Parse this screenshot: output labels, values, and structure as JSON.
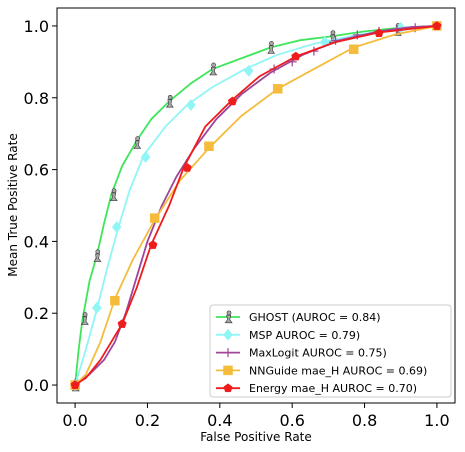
{
  "chart_data": {
    "type": "line",
    "title": "",
    "xlabel": "False Positive Rate",
    "ylabel": "Mean True Positive Rate",
    "xlim": [
      -0.05,
      1.05
    ],
    "ylim": [
      -0.05,
      1.05
    ],
    "xticks": [
      "0.0",
      "0.2",
      "0.4",
      "0.6",
      "0.8",
      "1.0"
    ],
    "yticks": [
      "0.0",
      "0.2",
      "0.4",
      "0.6",
      "0.8",
      "1.0"
    ],
    "grid": false,
    "legend_position": "bottom-right",
    "series": [
      {
        "name": "GHOST (AUROC = 0.84)",
        "color": "#3de65a",
        "marker": "figure",
        "marker_color": "#a8a8a8",
        "line": [
          [
            0,
            0
          ],
          [
            0.01,
            0.1
          ],
          [
            0.02,
            0.18
          ],
          [
            0.04,
            0.29
          ],
          [
            0.06,
            0.36
          ],
          [
            0.08,
            0.45
          ],
          [
            0.1,
            0.53
          ],
          [
            0.13,
            0.61
          ],
          [
            0.17,
            0.68
          ],
          [
            0.21,
            0.74
          ],
          [
            0.26,
            0.79
          ],
          [
            0.32,
            0.84
          ],
          [
            0.38,
            0.88
          ],
          [
            0.46,
            0.91
          ],
          [
            0.54,
            0.94
          ],
          [
            0.62,
            0.96
          ],
          [
            0.7,
            0.97
          ],
          [
            0.8,
            0.985
          ],
          [
            0.9,
            0.995
          ],
          [
            1.0,
            1.0
          ]
        ],
        "markers": [
          [
            0,
            0
          ],
          [
            0.025,
            0.185
          ],
          [
            0.06,
            0.36
          ],
          [
            0.105,
            0.53
          ],
          [
            0.17,
            0.675
          ],
          [
            0.26,
            0.79
          ],
          [
            0.38,
            0.88
          ],
          [
            0.54,
            0.94
          ],
          [
            0.71,
            0.97
          ],
          [
            0.89,
            0.99
          ]
        ]
      },
      {
        "name": "MSP  AUROC = 0.79)",
        "color": "#8ff5f5",
        "marker": "diamond",
        "marker_color": "#8ff5f5",
        "line": [
          [
            0,
            0
          ],
          [
            0.03,
            0.1
          ],
          [
            0.06,
            0.21
          ],
          [
            0.09,
            0.33
          ],
          [
            0.12,
            0.44
          ],
          [
            0.15,
            0.54
          ],
          [
            0.19,
            0.64
          ],
          [
            0.25,
            0.72
          ],
          [
            0.31,
            0.78
          ],
          [
            0.38,
            0.83
          ],
          [
            0.47,
            0.88
          ],
          [
            0.56,
            0.92
          ],
          [
            0.66,
            0.95
          ],
          [
            0.78,
            0.975
          ],
          [
            0.9,
            0.993
          ],
          [
            1.0,
            1.0
          ]
        ],
        "markers": [
          [
            0,
            0
          ],
          [
            0.06,
            0.215
          ],
          [
            0.115,
            0.44
          ],
          [
            0.195,
            0.635
          ],
          [
            0.32,
            0.78
          ],
          [
            0.48,
            0.875
          ],
          [
            0.69,
            0.955
          ],
          [
            0.9,
            0.995
          ]
        ]
      },
      {
        "name": "MaxLogit  AUROC = 0.75)",
        "color": "#a0449a",
        "marker": "tri",
        "marker_color": "#a0449a",
        "line": [
          [
            0,
            0
          ],
          [
            0.04,
            0.03
          ],
          [
            0.08,
            0.07
          ],
          [
            0.11,
            0.12
          ],
          [
            0.14,
            0.2
          ],
          [
            0.17,
            0.3
          ],
          [
            0.2,
            0.4
          ],
          [
            0.24,
            0.5
          ],
          [
            0.28,
            0.58
          ],
          [
            0.33,
            0.66
          ],
          [
            0.39,
            0.74
          ],
          [
            0.46,
            0.81
          ],
          [
            0.54,
            0.87
          ],
          [
            0.63,
            0.92
          ],
          [
            0.73,
            0.96
          ],
          [
            0.84,
            0.985
          ],
          [
            0.93,
            0.997
          ],
          [
            1.0,
            1.0
          ]
        ],
        "markers": [
          [
            0,
            0
          ],
          [
            0.55,
            0.88
          ],
          [
            0.6,
            0.9
          ],
          [
            0.66,
            0.93
          ],
          [
            0.72,
            0.96
          ],
          [
            0.78,
            0.975
          ],
          [
            0.84,
            0.985
          ],
          [
            0.89,
            0.99
          ],
          [
            0.94,
            0.995
          ],
          [
            1.0,
            1.0
          ]
        ]
      },
      {
        "name": "NNGuide mae_H  AUROC = 0.69)",
        "color": "#f5bc3c",
        "marker": "square",
        "marker_color": "#f5bc3c",
        "line": [
          [
            0,
            0
          ],
          [
            0.03,
            0.03
          ],
          [
            0.07,
            0.12
          ],
          [
            0.11,
            0.24
          ],
          [
            0.16,
            0.35
          ],
          [
            0.22,
            0.46
          ],
          [
            0.29,
            0.57
          ],
          [
            0.37,
            0.66
          ],
          [
            0.46,
            0.75
          ],
          [
            0.56,
            0.825
          ],
          [
            0.66,
            0.88
          ],
          [
            0.77,
            0.94
          ],
          [
            0.88,
            0.975
          ],
          [
            1.0,
            1.0
          ]
        ],
        "markers": [
          [
            0,
            0
          ],
          [
            0.11,
            0.235
          ],
          [
            0.22,
            0.465
          ],
          [
            0.37,
            0.665
          ],
          [
            0.56,
            0.825
          ],
          [
            0.77,
            0.935
          ],
          [
            1.0,
            1.0
          ]
        ]
      },
      {
        "name": "Energy mae_H  AUROC = 0.70)",
        "color": "#ee1c1c",
        "marker": "pentagon",
        "marker_color": "#ee1c1c",
        "line": [
          [
            0,
            0
          ],
          [
            0.03,
            0.02
          ],
          [
            0.07,
            0.07
          ],
          [
            0.1,
            0.12
          ],
          [
            0.13,
            0.17
          ],
          [
            0.17,
            0.27
          ],
          [
            0.21,
            0.39
          ],
          [
            0.26,
            0.5
          ],
          [
            0.3,
            0.605
          ],
          [
            0.36,
            0.72
          ],
          [
            0.43,
            0.79
          ],
          [
            0.51,
            0.86
          ],
          [
            0.61,
            0.915
          ],
          [
            0.72,
            0.955
          ],
          [
            0.84,
            0.982
          ],
          [
            1.0,
            1.0
          ]
        ],
        "markers": [
          [
            0,
            0
          ],
          [
            0.13,
            0.17
          ],
          [
            0.215,
            0.39
          ],
          [
            0.31,
            0.605
          ],
          [
            0.435,
            0.79
          ],
          [
            0.61,
            0.915
          ],
          [
            0.84,
            0.98
          ],
          [
            1.0,
            1.0
          ]
        ]
      }
    ]
  }
}
